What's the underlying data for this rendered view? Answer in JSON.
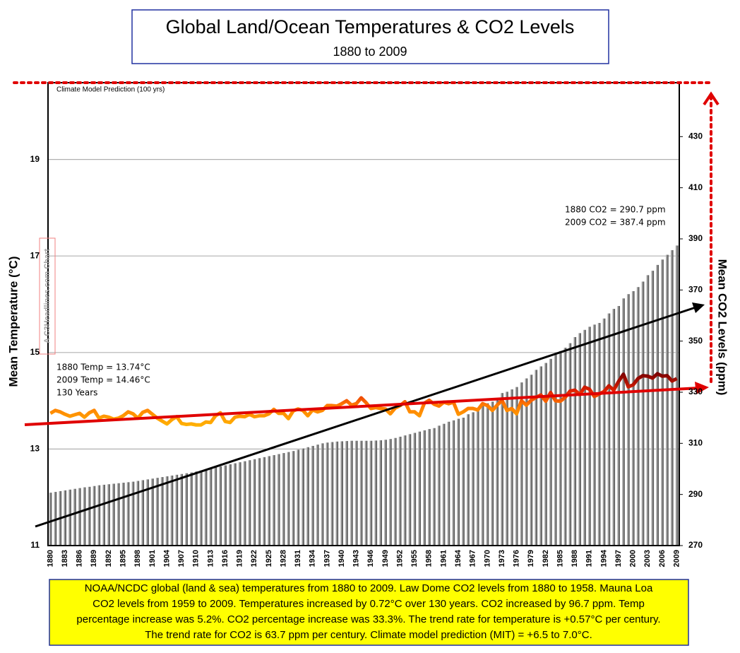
{
  "chart_data": {
    "type": "bar_line",
    "title": "Global Land/Ocean Temperatures & CO2 Levels",
    "subtitle": "1880 to 2009",
    "ylabel": "Mean Temperature (°C)",
    "y2label": "Mean CO2 Levels (ppm)",
    "annotations": {
      "model": "Climate Model Prediction (100 yrs)",
      "watermark": "A C3Headlines.com Chart",
      "co2_1880": "1880 CO2 =  290.7 ppm",
      "co2_2009": "2009 CO2 =  387.4 ppm",
      "temp_1880": "1880 Temp =  13.74°C",
      "temp_2009": "2009 Temp =  14.46°C",
      "years": "130 Years"
    },
    "note": [
      "NOAA/NCDC global (land & sea) temperatures from 1880 to 2009. Law Dome CO2 levels from 1880 to 1958. Mauna Loa",
      "CO2 levels from 1959 to 2009. Temperatures increased by 0.72°C over 130 years.  CO2 increased by 96.7 ppm. Temp",
      "percentage increase was 5.2%. CO2 percentage increase was 33.3%. The trend rate for temperature is +0.57°C per century.",
      "The trend rate for CO2 is 63.7 ppm per century. Climate model prediction (MIT) = +6.5 to 7.0°C."
    ],
    "categories": [
      "1880",
      null,
      null,
      "1883",
      null,
      null,
      "1886",
      null,
      null,
      "1889",
      null,
      null,
      "1892",
      null,
      null,
      "1895",
      null,
      null,
      "1898",
      null,
      null,
      "1901",
      null,
      null,
      "1904",
      null,
      null,
      "1907",
      null,
      null,
      "1910",
      null,
      null,
      "1913",
      null,
      null,
      "1916",
      null,
      null,
      "1919",
      null,
      null,
      "1922",
      null,
      null,
      "1925",
      null,
      null,
      "1928",
      null,
      null,
      "1931",
      null,
      null,
      "1934",
      null,
      null,
      "1937",
      null,
      null,
      "1940",
      null,
      null,
      "1943",
      null,
      null,
      "1946",
      null,
      null,
      "1949",
      null,
      null,
      "1952",
      null,
      null,
      "1955",
      null,
      null,
      "1958",
      null,
      null,
      "1961",
      null,
      null,
      "1964",
      null,
      null,
      "1967",
      null,
      null,
      "1970",
      null,
      null,
      "1973",
      null,
      null,
      "1976",
      null,
      null,
      "1979",
      null,
      null,
      "1982",
      null,
      null,
      "1985",
      null,
      null,
      "1988",
      null,
      null,
      "1991",
      null,
      null,
      "1994",
      null,
      null,
      "1997",
      null,
      null,
      "2000",
      null,
      null,
      "2003",
      null,
      null,
      "2006",
      null,
      null,
      "2009"
    ],
    "series": [
      {
        "name": "CO2",
        "axis": "y2",
        "color": "#8c8c8c",
        "values": [
          290.7,
          291.0,
          291.3,
          291.6,
          291.9,
          292.2,
          292.5,
          292.8,
          293.0,
          293.3,
          293.6,
          293.8,
          294.0,
          294.2,
          294.4,
          294.6,
          294.8,
          295.0,
          295.3,
          295.6,
          295.9,
          296.2,
          296.5,
          296.8,
          297.1,
          297.4,
          297.7,
          298.0,
          298.3,
          298.6,
          299.0,
          299.4,
          299.8,
          300.2,
          300.6,
          301.0,
          301.4,
          301.8,
          302.2,
          302.6,
          303.0,
          303.4,
          303.8,
          304.2,
          304.6,
          305.0,
          305.4,
          305.8,
          306.2,
          306.6,
          307.0,
          307.5,
          308.0,
          308.5,
          309.0,
          309.5,
          310.0,
          310.3,
          310.5,
          310.7,
          310.8,
          310.9,
          311.0,
          311.0,
          311.0,
          311.0,
          311.0,
          311.1,
          311.2,
          311.4,
          311.7,
          312.1,
          312.6,
          313.1,
          313.6,
          314.1,
          314.6,
          315.1,
          315.6,
          315.97,
          316.91,
          317.64,
          318.45,
          318.99,
          319.62,
          320.04,
          321.38,
          322.16,
          323.04,
          324.62,
          325.68,
          326.32,
          327.45,
          329.68,
          330.18,
          331.11,
          332.04,
          333.83,
          335.4,
          336.84,
          338.75,
          340.11,
          341.45,
          343.05,
          344.65,
          346.12,
          347.42,
          349.19,
          351.57,
          353.12,
          354.39,
          355.61,
          356.45,
          357.1,
          358.83,
          360.82,
          362.61,
          363.73,
          366.7,
          368.38,
          369.55,
          371.14,
          373.28,
          375.8,
          377.52,
          379.8,
          381.9,
          383.76,
          385.59,
          387.4
        ]
      },
      {
        "name": "Temperature",
        "axis": "y",
        "color": "#ff8000",
        "values": [
          13.74,
          13.8,
          13.77,
          13.72,
          13.68,
          13.71,
          13.74,
          13.66,
          13.75,
          13.8,
          13.64,
          13.68,
          13.66,
          13.62,
          13.64,
          13.69,
          13.77,
          13.73,
          13.64,
          13.76,
          13.8,
          13.72,
          13.64,
          13.58,
          13.52,
          13.61,
          13.67,
          13.53,
          13.51,
          13.52,
          13.5,
          13.5,
          13.56,
          13.55,
          13.69,
          13.75,
          13.57,
          13.55,
          13.66,
          13.68,
          13.67,
          13.72,
          13.67,
          13.69,
          13.69,
          13.73,
          13.82,
          13.74,
          13.74,
          13.63,
          13.79,
          13.83,
          13.8,
          13.69,
          13.81,
          13.77,
          13.8,
          13.9,
          13.9,
          13.89,
          13.94,
          14.0,
          13.91,
          13.94,
          14.06,
          13.96,
          13.84,
          13.86,
          13.84,
          13.83,
          13.73,
          13.85,
          13.9,
          13.98,
          13.77,
          13.77,
          13.69,
          13.95,
          14.01,
          13.93,
          13.89,
          13.97,
          13.94,
          13.97,
          13.72,
          13.77,
          13.84,
          13.84,
          13.81,
          13.94,
          13.9,
          13.8,
          13.91,
          14.01,
          13.8,
          13.84,
          13.73,
          14.0,
          13.91,
          14.01,
          14.07,
          14.12,
          13.99,
          14.17,
          14.0,
          13.99,
          14.07,
          14.2,
          14.22,
          14.13,
          14.28,
          14.24,
          14.09,
          14.14,
          14.19,
          14.31,
          14.22,
          14.4,
          14.55,
          14.29,
          14.33,
          14.46,
          14.52,
          14.51,
          14.47,
          14.56,
          14.51,
          14.52,
          14.41,
          14.46
        ]
      }
    ],
    "ylim": [
      11,
      20.59
    ],
    "yticks": [
      11,
      13,
      15,
      17,
      19
    ],
    "y2lim": [
      270,
      451.1
    ],
    "y2ticks": [
      270,
      290,
      310,
      330,
      350,
      370,
      390,
      410,
      430
    ],
    "grid": true
  }
}
